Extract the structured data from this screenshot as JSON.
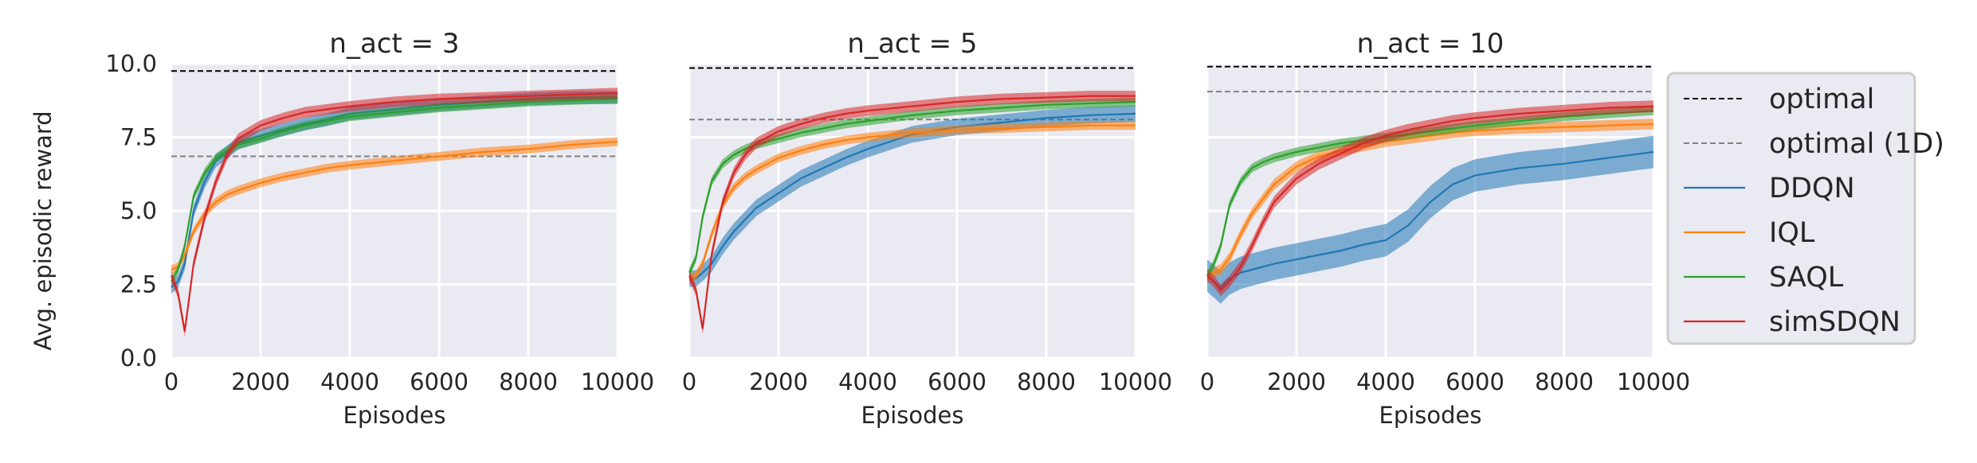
{
  "chart_data": {
    "type": "line",
    "ylabel": "Avg. episodic reward",
    "ylim": [
      0,
      10
    ],
    "yticks": [
      "0.0",
      "2.5",
      "5.0",
      "7.5",
      "10.0"
    ],
    "xlim": [
      0,
      10000
    ],
    "xticks": [
      "0",
      "2000",
      "4000",
      "6000",
      "8000",
      "10000"
    ],
    "grid": true,
    "legend": {
      "placement": "right",
      "entries": [
        {
          "name": "optimal",
          "style": "dashed",
          "color": "#000000"
        },
        {
          "name": "optimal (1D)",
          "style": "dashed",
          "color": "#808080"
        },
        {
          "name": "DDQN",
          "style": "solid",
          "color": "#1f77b4"
        },
        {
          "name": "IQL",
          "style": "solid",
          "color": "#ff7f0e"
        },
        {
          "name": "SAQL",
          "style": "solid",
          "color": "#2ca02c"
        },
        {
          "name": "simSDQN",
          "style": "solid",
          "color": "#d62728"
        }
      ]
    },
    "panels": [
      {
        "title": "n_act = 3",
        "xlabel": "Episodes",
        "optimal": 9.75,
        "optimal_1d": 6.85,
        "x": [
          0,
          150,
          300,
          500,
          750,
          1000,
          1250,
          1500,
          2000,
          2500,
          3000,
          3500,
          4000,
          5000,
          6000,
          7000,
          8000,
          9000,
          10000
        ],
        "series": [
          {
            "name": "DDQN",
            "band": 0.22,
            "values": [
              2.4,
              2.6,
              3.2,
              5.0,
              6.0,
              6.7,
              7.0,
              7.3,
              7.55,
              7.75,
              7.95,
              8.1,
              8.3,
              8.45,
              8.6,
              8.7,
              8.8,
              8.85,
              8.85
            ]
          },
          {
            "name": "IQL",
            "band": 0.15,
            "values": [
              3.0,
              3.1,
              3.5,
              4.3,
              4.9,
              5.3,
              5.55,
              5.7,
              5.95,
              6.15,
              6.3,
              6.45,
              6.55,
              6.7,
              6.85,
              7.0,
              7.1,
              7.25,
              7.35
            ]
          },
          {
            "name": "SAQL",
            "band": 0.15,
            "values": [
              2.6,
              3.0,
              3.8,
              5.5,
              6.3,
              6.8,
              7.05,
              7.25,
              7.45,
              7.7,
              7.9,
              8.05,
              8.2,
              8.35,
              8.5,
              8.6,
              8.7,
              8.75,
              8.8
            ]
          },
          {
            "name": "simSDQN",
            "band": 0.18,
            "values": [
              2.8,
              2.2,
              0.9,
              3.2,
              4.8,
              6.0,
              6.9,
              7.45,
              7.9,
              8.15,
              8.35,
              8.45,
              8.55,
              8.7,
              8.8,
              8.85,
              8.9,
              8.95,
              9.0
            ]
          }
        ]
      },
      {
        "title": "n_act = 5",
        "xlabel": "Episodes",
        "optimal": 9.85,
        "optimal_1d": 8.1,
        "x": [
          0,
          150,
          300,
          500,
          750,
          1000,
          1250,
          1500,
          2000,
          2500,
          3000,
          3500,
          4000,
          5000,
          6000,
          7000,
          8000,
          9000,
          10000
        ],
        "series": [
          {
            "name": "DDQN",
            "band": 0.28,
            "values": [
              2.7,
              2.7,
              2.9,
              3.2,
              3.8,
              4.3,
              4.7,
              5.1,
              5.6,
              6.1,
              6.45,
              6.8,
              7.1,
              7.6,
              7.85,
              8.0,
              8.15,
              8.25,
              8.3
            ]
          },
          {
            "name": "IQL",
            "band": 0.15,
            "values": [
              2.7,
              2.8,
              3.2,
              4.2,
              5.2,
              5.8,
              6.15,
              6.4,
              6.8,
              7.05,
              7.25,
              7.4,
              7.5,
              7.65,
              7.75,
              7.8,
              7.85,
              7.9,
              7.9
            ]
          },
          {
            "name": "SAQL",
            "band": 0.15,
            "values": [
              2.9,
              3.4,
              4.8,
              6.0,
              6.6,
              6.9,
              7.1,
              7.25,
              7.45,
              7.65,
              7.8,
              7.95,
              8.05,
              8.25,
              8.4,
              8.5,
              8.6,
              8.65,
              8.7
            ]
          },
          {
            "name": "simSDQN",
            "band": 0.18,
            "values": [
              2.8,
              2.3,
              1.0,
              3.5,
              5.3,
              6.3,
              6.9,
              7.3,
              7.7,
              7.95,
              8.15,
              8.3,
              8.4,
              8.55,
              8.7,
              8.8,
              8.85,
              8.9,
              8.9
            ]
          }
        ]
      },
      {
        "title": "n_act = 10",
        "xlabel": "Episodes",
        "optimal": 9.9,
        "optimal_1d": 9.05,
        "x": [
          0,
          150,
          300,
          500,
          750,
          1000,
          1250,
          1500,
          2000,
          2500,
          3000,
          3500,
          4000,
          4500,
          5000,
          5500,
          6000,
          7000,
          8000,
          9000,
          10000
        ],
        "series": [
          {
            "name": "DDQN",
            "band": 0.55,
            "values": [
              2.8,
              2.6,
              2.4,
              2.7,
              2.9,
              3.0,
              3.1,
              3.2,
              3.35,
              3.5,
              3.65,
              3.85,
              4.0,
              4.5,
              5.3,
              5.9,
              6.2,
              6.45,
              6.6,
              6.8,
              7.0
            ]
          },
          {
            "name": "IQL",
            "band": 0.18,
            "values": [
              2.8,
              2.9,
              3.0,
              3.4,
              4.2,
              4.9,
              5.4,
              5.9,
              6.5,
              6.85,
              7.05,
              7.2,
              7.35,
              7.45,
              7.55,
              7.65,
              7.72,
              7.8,
              7.85,
              7.9,
              7.95
            ]
          },
          {
            "name": "SAQL",
            "band": 0.15,
            "values": [
              2.8,
              3.2,
              3.8,
              5.2,
              6.0,
              6.45,
              6.65,
              6.8,
              7.0,
              7.15,
              7.3,
              7.4,
              7.5,
              7.6,
              7.7,
              7.8,
              7.9,
              8.05,
              8.2,
              8.3,
              8.4
            ]
          },
          {
            "name": "simSDQN",
            "band": 0.2,
            "values": [
              2.8,
              2.6,
              2.3,
              2.6,
              3.1,
              3.8,
              4.6,
              5.3,
              6.1,
              6.6,
              6.95,
              7.3,
              7.55,
              7.75,
              7.9,
              8.05,
              8.15,
              8.3,
              8.4,
              8.5,
              8.55
            ]
          }
        ]
      }
    ]
  }
}
